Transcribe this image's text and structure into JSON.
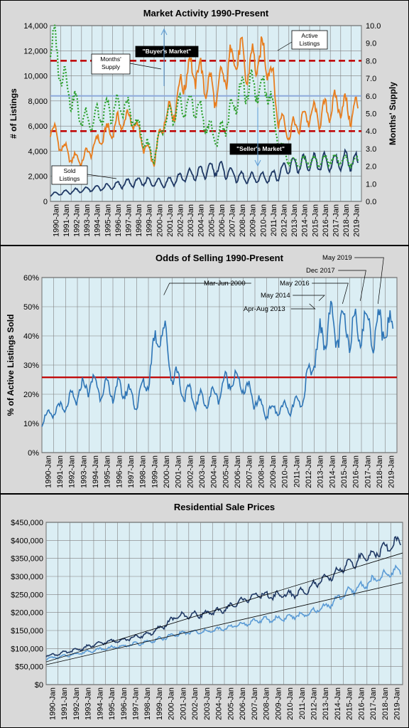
{
  "chart_data": [
    {
      "type": "line",
      "title": "Market Activity  1990-Present",
      "ylabel": "# of Listings",
      "ylabel_right": "Months' Supply",
      "ylim": [
        0,
        14000
      ],
      "ylim_right": [
        0,
        10
      ],
      "yticks": [
        "0",
        "2,000",
        "4,000",
        "6,000",
        "8,000",
        "10,000",
        "12,000",
        "14,000"
      ],
      "yticks_right": [
        "0.0",
        "1.0",
        "2.0",
        "3.0",
        "4.0",
        "5.0",
        "6.0",
        "7.0",
        "8.0",
        "9.0",
        "10.0"
      ],
      "xticks": [
        "1990-Jan",
        "1991-Jan",
        "1992-Jan",
        "1993-Jan",
        "1994-Jan",
        "1995-Jan",
        "1996-Jan",
        "1997-Jan",
        "1998-Jan",
        "1999-Jan",
        "2000-Jan",
        "2001-Jan",
        "2002-Jan",
        "2003-Jan",
        "2004-Jan",
        "2005-Jan",
        "2006-Jan",
        "2007-Jan",
        "2008-Jan",
        "2009-Jan",
        "2010-Jan",
        "2011-Jan",
        "2012-Jan",
        "2013-Jan",
        "2014-Jan",
        "2015-Jan",
        "2016-Jan",
        "2017-Jan",
        "2018-Jan",
        "2019-Jan"
      ],
      "x": [
        1990,
        1991,
        1992,
        1993,
        1994,
        1995,
        1996,
        1997,
        1998,
        1999,
        2000,
        2001,
        2002,
        2003,
        2004,
        2005,
        2006,
        2007,
        2008,
        2009,
        2010,
        2011,
        2012,
        2013,
        2014,
        2015,
        2016,
        2017,
        2018,
        2019,
        2019.7
      ],
      "series": [
        {
          "name": "Active Listings",
          "color": "#e87d1e",
          "axis": "left",
          "style": "solid",
          "values": [
            6000,
            4500,
            3500,
            3300,
            4200,
            5200,
            5800,
            6500,
            6500,
            4500,
            3200,
            6800,
            7500,
            10200,
            10500,
            9500,
            8500,
            10500,
            12000,
            10500,
            11500,
            11500,
            6800,
            5500,
            6200,
            7000,
            6800,
            7500,
            7800,
            7000,
            7400
          ]
        },
        {
          "name": "Sold Listings",
          "color": "#1f3864",
          "axis": "left",
          "style": "solid",
          "values": [
            550,
            650,
            800,
            900,
            1000,
            1100,
            1200,
            1400,
            1500,
            1600,
            1500,
            1500,
            1700,
            2000,
            2200,
            2400,
            2700,
            2400,
            2000,
            1800,
            1900,
            1900,
            2200,
            2800,
            3000,
            3000,
            3100,
            3100,
            3200,
            3300,
            3000
          ]
        },
        {
          "name": "Months' Supply",
          "color": "#2ca02c",
          "axis": "right",
          "style": "dotted",
          "values": [
            9.5,
            7.5,
            6.0,
            4.8,
            4.6,
            5.0,
            5.2,
            5.5,
            4.8,
            3.5,
            2.5,
            4.5,
            5.0,
            5.5,
            5.5,
            4.5,
            3.5,
            4.5,
            6.0,
            6.5,
            6.5,
            6.5,
            3.5,
            2.3,
            2.2,
            2.3,
            2.2,
            2.4,
            2.4,
            2.2,
            2.3
          ]
        }
      ],
      "reference_lines": [
        {
          "value": 8.0,
          "axis": "right",
          "color": "#c00000",
          "style": "dashed"
        },
        {
          "value": 4.0,
          "axis": "right",
          "color": "#c00000",
          "style": "dashed"
        },
        {
          "value": 6.0,
          "axis": "right",
          "color": "#8eaadb",
          "style": "solid"
        }
      ],
      "annotations": [
        "Months' Supply",
        "\"Buyer's Market\"",
        "Active Listings",
        "\"Seller's Market\"",
        "Sold Listings"
      ]
    },
    {
      "type": "line",
      "title": "Odds of Selling 1990-Present",
      "ylabel": "% of Active Listings Sold",
      "ylim": [
        0,
        60
      ],
      "yticks": [
        "0%",
        "10%",
        "20%",
        "30%",
        "40%",
        "50%",
        "60%"
      ],
      "xticks": [
        "1990-Jan",
        "1991-Jan",
        "1992-Jan",
        "1993-Jan",
        "1994-Jan",
        "1995-Jan",
        "1996-Jan",
        "1997-Jan",
        "1998-Jan",
        "1999-Jan",
        "2000-Jan",
        "2001-Jan",
        "2002-Jan",
        "2003-Jan",
        "2004-Jan",
        "2005-Jan",
        "2006-Jan",
        "2007-Jan",
        "2008-Jan",
        "2009-Jan",
        "2010-Jan",
        "2011-Jan",
        "2012-Jan",
        "2013-Jan",
        "2014-Jan",
        "2015-Jan",
        "2016-Jan",
        "2017-Jan",
        "2018-Jan",
        "2019-Jan"
      ],
      "x": [
        1990,
        1991,
        1992,
        1993,
        1994,
        1995,
        1996,
        1997,
        1998,
        1999,
        2000,
        2001,
        2002,
        2003,
        2004,
        2005,
        2006,
        2007,
        2008,
        2009,
        2010,
        2011,
        2012,
        2013,
        2014,
        2015,
        2016,
        2017,
        2018,
        2019,
        2019.7
      ],
      "series": [
        {
          "name": "Odds of Selling",
          "color": "#2e75b6",
          "values": [
            11,
            14,
            16,
            20,
            24,
            22,
            21,
            22,
            17,
            26,
            45,
            28,
            21,
            18,
            18,
            21,
            26,
            23,
            18,
            14,
            15,
            15,
            18,
            33,
            44,
            42,
            42,
            44,
            42,
            44,
            40
          ]
        }
      ],
      "reference_lines": [
        {
          "value": 25.8,
          "color": "#c00000"
        }
      ],
      "annotations": [
        "Mar-Jun 2000",
        "May 2014",
        "Apr-Aug 2013",
        "May 2016",
        "Dec 2017",
        "May 2019"
      ]
    },
    {
      "type": "line",
      "title": "Residential Sale Prices",
      "ylim": [
        0,
        450000
      ],
      "yticks": [
        "$0",
        "$50,000",
        "$100,000",
        "$150,000",
        "$200,000",
        "$250,000",
        "$300,000",
        "$350,000",
        "$400,000",
        "$450,000"
      ],
      "xticks": [
        "1990-Jan",
        "1991-Jan",
        "1992-Jan",
        "1993-Jan",
        "1994-Jan",
        "1995-Jan",
        "1996-Jan",
        "1997-Jan",
        "1998-Jan",
        "1999-Jan",
        "2000-Jan",
        "2001-Jan",
        "2002-Jan",
        "2003-Jan",
        "2004-Jan",
        "2005-Jan",
        "2006-Jan",
        "2007-Jan",
        "2008-Jan",
        "2009-Jan",
        "2010-Jan",
        "2011-Jan",
        "2012-Jan",
        "2013-Jan",
        "2014-Jan",
        "2015-Jan",
        "2016-Jan",
        "2017-Jan",
        "2018-Jan",
        "2019-Jan"
      ],
      "x": [
        1990,
        1991,
        1992,
        1993,
        1994,
        1995,
        1996,
        1997,
        1998,
        1999,
        2000,
        2001,
        2002,
        2003,
        2004,
        2005,
        2006,
        2007,
        2008,
        2009,
        2010,
        2011,
        2012,
        2013,
        2014,
        2015,
        2016,
        2017,
        2018,
        2019,
        2019.8
      ],
      "series": [
        {
          "name": "Dark series",
          "color": "#1f3864",
          "values": [
            80000,
            85000,
            92000,
            100000,
            110000,
            118000,
            122000,
            128000,
            135000,
            145000,
            165000,
            190000,
            192000,
            195000,
            200000,
            208000,
            225000,
            240000,
            250000,
            245000,
            250000,
            250000,
            265000,
            285000,
            300000,
            325000,
            340000,
            355000,
            370000,
            385000,
            400000
          ]
        },
        {
          "name": "Light series",
          "color": "#5b9bd5",
          "values": [
            72000,
            76000,
            82000,
            88000,
            95000,
            100000,
            105000,
            110000,
            115000,
            122000,
            130000,
            140000,
            145000,
            145000,
            150000,
            155000,
            165000,
            170000,
            180000,
            180000,
            185000,
            190000,
            195000,
            210000,
            225000,
            250000,
            265000,
            280000,
            295000,
            310000,
            320000
          ]
        }
      ],
      "trendlines": [
        {
          "from": [
            1990,
            63000
          ],
          "to": [
            2020,
            365000
          ]
        },
        {
          "from": [
            1990,
            55000
          ],
          "to": [
            2020,
            283000
          ]
        }
      ]
    }
  ]
}
